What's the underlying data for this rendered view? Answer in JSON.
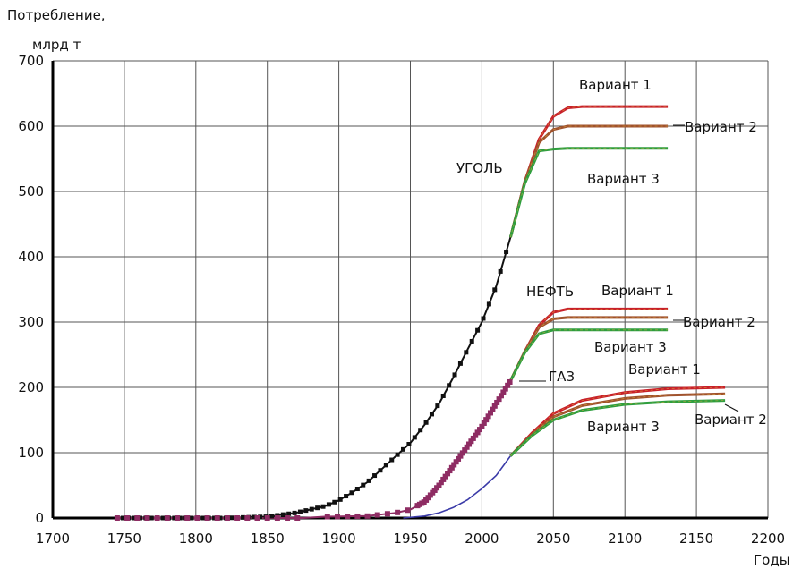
{
  "chart_data": {
    "type": "line",
    "ylabel_line1": "Потребление,",
    "ylabel_line2": "млрд т",
    "xlabel": "Годы",
    "xlim": [
      1700,
      2200
    ],
    "ylim": [
      0,
      700
    ],
    "grid": true,
    "x_ticks": [
      "1700",
      "1750",
      "1800",
      "1850",
      "1900",
      "1950",
      "2000",
      "2050",
      "2100",
      "2150",
      "2200"
    ],
    "y_ticks": [
      "0",
      "100",
      "200",
      "300",
      "400",
      "500",
      "600",
      "700"
    ],
    "colors": {
      "coal": "#111111",
      "oil": "#8e2c63",
      "gas": "#3b3ba8",
      "variant1": "#c8202a",
      "variant2": "#a0522d",
      "variant3": "#2e9e3e",
      "oil_label": "#b2102a"
    },
    "series": [
      {
        "name": "УГОЛЬ",
        "x": [
          1745,
          1780,
          1820,
          1850,
          1870,
          1890,
          1900,
          1910,
          1920,
          1930,
          1940,
          1950,
          1960,
          1970,
          1980,
          1990,
          2000,
          2010,
          2020
        ],
        "y": [
          0,
          0,
          0,
          2,
          8,
          18,
          27,
          40,
          55,
          75,
          95,
          115,
          143,
          175,
          215,
          258,
          300,
          355,
          430
        ]
      },
      {
        "name": "НЕФТЬ",
        "x": [
          1745,
          1800,
          1850,
          1875,
          1890,
          1920,
          1940,
          1950,
          1960,
          1970,
          1980,
          1990,
          2000,
          2010,
          2020
        ],
        "y": [
          0,
          0,
          0,
          0,
          2,
          3,
          8,
          13,
          25,
          50,
          80,
          110,
          140,
          175,
          210
        ]
      },
      {
        "name": "ГАЗ",
        "x": [
          1945,
          1960,
          1970,
          1980,
          1990,
          2000,
          2010,
          2020
        ],
        "y": [
          0,
          3,
          8,
          16,
          28,
          45,
          65,
          95
        ]
      }
    ],
    "scenarios": [
      {
        "resource": "УГОЛЬ",
        "variants": [
          {
            "name": "Вариант 1",
            "x": [
              2020,
              2030,
              2040,
              2050,
              2060,
              2070,
              2130
            ],
            "y": [
              430,
              515,
              580,
              615,
              628,
              630,
              630
            ]
          },
          {
            "name": "Вариант 2",
            "x": [
              2020,
              2030,
              2040,
              2050,
              2060,
              2070,
              2130
            ],
            "y": [
              430,
              515,
              575,
              595,
              600,
              600,
              600
            ]
          },
          {
            "name": "Вариант 3",
            "x": [
              2020,
              2030,
              2040,
              2050,
              2060,
              2070,
              2130
            ],
            "y": [
              430,
              512,
              562,
              565,
              566,
              566,
              566
            ]
          }
        ]
      },
      {
        "resource": "НЕФТЬ",
        "variants": [
          {
            "name": "Вариант 1",
            "x": [
              2020,
              2030,
              2040,
              2050,
              2060,
              2070,
              2130
            ],
            "y": [
              210,
              255,
              295,
              315,
              320,
              320,
              320
            ]
          },
          {
            "name": "Вариант 2",
            "x": [
              2020,
              2030,
              2040,
              2050,
              2060,
              2070,
              2130
            ],
            "y": [
              210,
              255,
              292,
              305,
              307,
              307,
              307
            ]
          },
          {
            "name": "Вариант 3",
            "x": [
              2020,
              2030,
              2040,
              2050,
              2060,
              2070,
              2130
            ],
            "y": [
              210,
              253,
              282,
              288,
              288,
              288,
              288
            ]
          }
        ]
      },
      {
        "resource": "ГАЗ",
        "variants": [
          {
            "name": "Вариант 1",
            "x": [
              2020,
              2035,
              2050,
              2070,
              2100,
              2130,
              2170
            ],
            "y": [
              95,
              130,
              160,
              180,
              192,
              198,
              200
            ]
          },
          {
            "name": "Вариант 2",
            "x": [
              2020,
              2035,
              2050,
              2070,
              2100,
              2130,
              2170
            ],
            "y": [
              95,
              128,
              155,
              172,
              183,
              188,
              190
            ]
          },
          {
            "name": "Вариант 3",
            "x": [
              2020,
              2035,
              2050,
              2070,
              2100,
              2130,
              2170
            ],
            "y": [
              95,
              126,
              150,
              165,
              174,
              178,
              180
            ]
          }
        ]
      }
    ],
    "annotations": [
      {
        "text": "УГОЛЬ"
      },
      {
        "text": "НЕФТЬ"
      },
      {
        "text": "ГАЗ"
      },
      {
        "text": "Вариант 1"
      },
      {
        "text": "Вариант 2"
      },
      {
        "text": "Вариант 3"
      },
      {
        "text": "Вариант 1"
      },
      {
        "text": "Вариант 2"
      },
      {
        "text": "Вариант 3"
      },
      {
        "text": "Вариант 1"
      },
      {
        "text": "Вариант 2"
      },
      {
        "text": "Вариант 3"
      }
    ]
  }
}
